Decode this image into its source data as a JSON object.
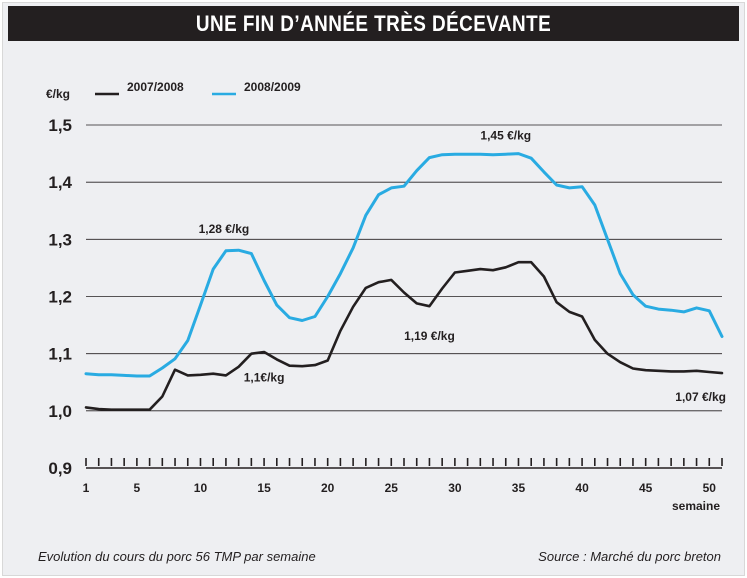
{
  "header": {
    "title": "UNE FIN D’ANNÉE TRÈS DÉCEVANTE"
  },
  "footer": {
    "caption": "Evolution du cours du porc 56 TMP par semaine",
    "source": "Source : Marché du porc breton"
  },
  "colors": {
    "series_2007": "#231f20",
    "series_2008": "#29abe2",
    "grid": "#231f20",
    "background": "#eeeff2"
  },
  "chart_data": {
    "type": "line",
    "title": "UNE FIN D’ANNÉE TRÈS DÉCEVANTE",
    "ylabel": "€/kg",
    "xlabel": "semaine",
    "ylim": [
      0.9,
      1.5
    ],
    "xlim": [
      1,
      51
    ],
    "yticks": [
      "0,9",
      "1,0",
      "1,1",
      "1,2",
      "1,3",
      "1,4",
      "1,5"
    ],
    "xticks": [
      1,
      5,
      10,
      15,
      20,
      25,
      30,
      35,
      40,
      45,
      50
    ],
    "grid": "horizontal",
    "legend": "top-left",
    "x": [
      1,
      2,
      3,
      4,
      5,
      6,
      7,
      8,
      9,
      10,
      11,
      12,
      13,
      14,
      15,
      16,
      17,
      18,
      19,
      20,
      21,
      22,
      23,
      24,
      25,
      26,
      27,
      28,
      29,
      30,
      31,
      32,
      33,
      34,
      35,
      36,
      37,
      38,
      39,
      40,
      41,
      42,
      43,
      44,
      45,
      46,
      47,
      48,
      49,
      50,
      51
    ],
    "series": [
      {
        "name": "2007/2008",
        "values": [
          1.006,
          1.003,
          1.002,
          1.002,
          1.002,
          1.002,
          1.025,
          1.072,
          1.062,
          1.063,
          1.065,
          1.062,
          1.077,
          1.1,
          1.103,
          1.09,
          1.079,
          1.078,
          1.08,
          1.088,
          1.14,
          1.182,
          1.215,
          1.225,
          1.229,
          1.207,
          1.188,
          1.183,
          1.214,
          1.242,
          1.245,
          1.248,
          1.246,
          1.251,
          1.26,
          1.26,
          1.235,
          1.19,
          1.173,
          1.165,
          1.124,
          1.1,
          1.085,
          1.074,
          1.071,
          1.07,
          1.069,
          1.069,
          1.07,
          1.068,
          1.066
        ]
      },
      {
        "name": "2008/2009",
        "values": [
          1.065,
          1.063,
          1.063,
          1.062,
          1.061,
          1.061,
          1.075,
          1.091,
          1.123,
          1.185,
          1.248,
          1.28,
          1.281,
          1.275,
          1.228,
          1.185,
          1.163,
          1.158,
          1.165,
          1.2,
          1.24,
          1.285,
          1.342,
          1.378,
          1.39,
          1.393,
          1.42,
          1.443,
          1.448,
          1.449,
          1.449,
          1.449,
          1.448,
          1.449,
          1.45,
          1.442,
          1.418,
          1.395,
          1.39,
          1.392,
          1.36,
          1.3,
          1.24,
          1.203,
          1.183,
          1.178,
          1.176,
          1.173,
          1.18,
          1.175,
          1.13
        ]
      }
    ],
    "annotations": [
      {
        "text": "1,28 €/kg",
        "x": 12,
        "y": 1.28
      },
      {
        "text": "1,45 €/kg",
        "x": 34,
        "y": 1.45
      },
      {
        "text": "1,1€/kg",
        "x": 15,
        "y": 1.1
      },
      {
        "text": "1,19 €/kg",
        "x": 28,
        "y": 1.19
      },
      {
        "text": "1,07 €/kg",
        "x": 51,
        "y": 1.07
      }
    ]
  }
}
